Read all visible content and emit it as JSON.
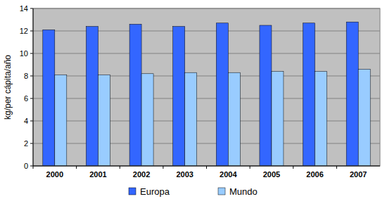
{
  "chart_data": {
    "type": "bar",
    "y_label": "kg/per cápita/año",
    "categories": [
      "2000",
      "2001",
      "2002",
      "2003",
      "2004",
      "2005",
      "2006",
      "2007"
    ],
    "series": [
      {
        "name": "Europa",
        "color": "#3366ff",
        "values": [
          12.1,
          12.4,
          12.6,
          12.4,
          12.7,
          12.5,
          12.7,
          12.8
        ]
      },
      {
        "name": "Mundo",
        "color": "#99ccff",
        "values": [
          8.1,
          8.1,
          8.2,
          8.3,
          8.3,
          8.4,
          8.4,
          8.6
        ]
      }
    ],
    "ylim": [
      0,
      14
    ],
    "yticks": [
      0,
      2,
      4,
      6,
      8,
      10,
      12,
      14
    ],
    "grid": true,
    "legend": "bottom"
  }
}
